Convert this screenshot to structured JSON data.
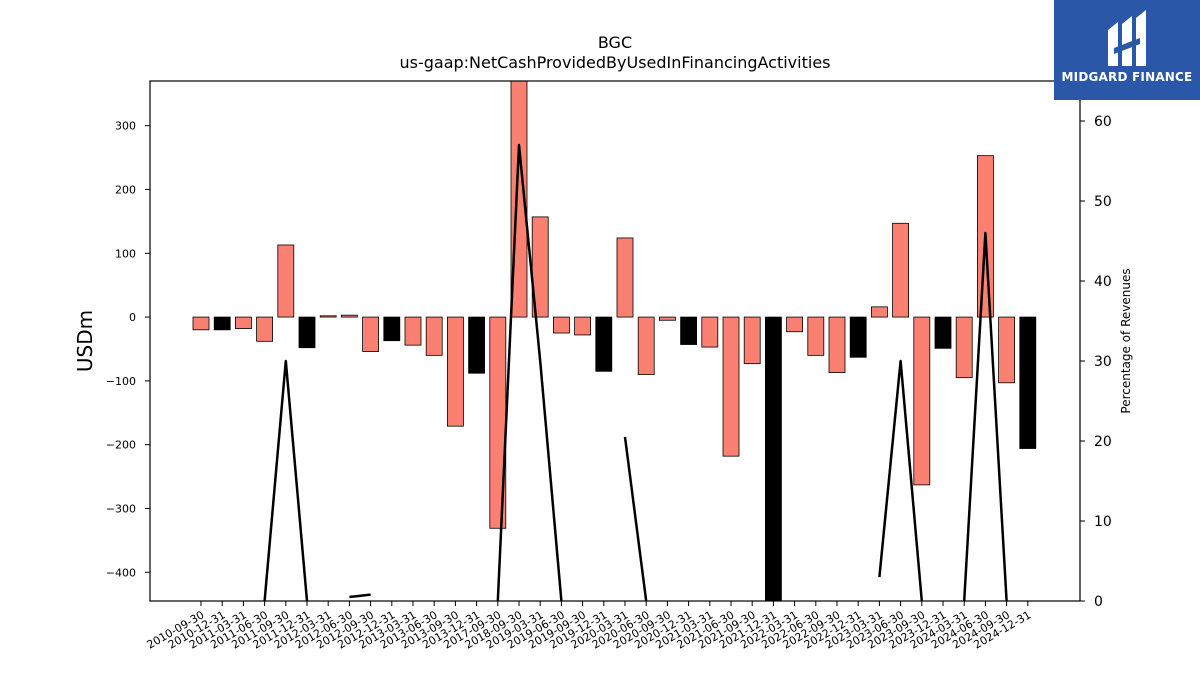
{
  "logo": {
    "text": "MIDGARD FINANCE",
    "color": "#2b57a8"
  },
  "chart_data": {
    "type": "bar",
    "title": "BGC",
    "subtitle": "us-gaap:NetCashProvidedByUsedInFinancingActivities",
    "ylabel": "USDm",
    "y2label": "Percentage of Revenues",
    "ylim": [
      -445,
      370
    ],
    "y2lim": [
      0,
      65
    ],
    "yticks": [
      300,
      200,
      100,
      0,
      -100,
      -200,
      -300,
      -400
    ],
    "y2ticks": [
      0,
      10,
      20,
      30,
      40,
      50,
      60
    ],
    "colors": {
      "positive_bar": "#fa8072",
      "negative_bar": "#000000",
      "line": "#000000"
    },
    "categories": [
      "2010-09-30",
      "2010-12-31",
      "2011-03-31",
      "2011-06-30",
      "2011-09-30",
      "2011-12-31",
      "2012-03-31",
      "2012-06-30",
      "2012-09-30",
      "2012-12-31",
      "2013-03-31",
      "2013-06-30",
      "2013-09-30",
      "2013-12-31",
      "2017-09-30",
      "2018-09-30",
      "2019-03-31",
      "2019-06-30",
      "2019-09-30",
      "2019-12-31",
      "2020-03-31",
      "2020-06-30",
      "2020-09-30",
      "2020-12-31",
      "2021-03-31",
      "2021-06-30",
      "2021-09-30",
      "2021-12-31",
      "2022-03-31",
      "2022-06-30",
      "2022-09-30",
      "2022-12-31",
      "2023-03-31",
      "2023-06-30",
      "2023-09-30",
      "2023-12-31",
      "2024-03-31",
      "2024-06-30",
      "2024-09-30",
      "2024-12-31"
    ],
    "series": [
      {
        "values": [
          -20,
          -20,
          -18,
          -38,
          113,
          -48,
          2,
          3,
          -54,
          -37,
          -44,
          -60,
          -171,
          -88,
          -331,
          400,
          157,
          -25,
          -28,
          -85,
          124,
          -90,
          -5,
          -43,
          -47,
          -218,
          -73,
          -460,
          -23,
          -60,
          -87,
          -63,
          16,
          147,
          -263,
          -49,
          -95,
          253,
          -103,
          -206
        ]
      }
    ],
    "bar_colors": [
      "positive_bar",
      "negative_bar",
      "positive_bar",
      "positive_bar",
      "positive_bar",
      "negative_bar",
      "positive_bar",
      "positive_bar",
      "positive_bar",
      "negative_bar",
      "positive_bar",
      "positive_bar",
      "positive_bar",
      "negative_bar",
      "positive_bar",
      "positive_bar",
      "positive_bar",
      "positive_bar",
      "positive_bar",
      "negative_bar",
      "positive_bar",
      "positive_bar",
      "positive_bar",
      "negative_bar",
      "positive_bar",
      "positive_bar",
      "positive_bar",
      "negative_bar",
      "positive_bar",
      "positive_bar",
      "positive_bar",
      "negative_bar",
      "positive_bar",
      "positive_bar",
      "positive_bar",
      "negative_bar",
      "positive_bar",
      "positive_bar",
      "positive_bar",
      "negative_bar"
    ],
    "line_pct": [
      null,
      null,
      null,
      0,
      30,
      0,
      null,
      0.5,
      0.8,
      null,
      null,
      null,
      null,
      null,
      0,
      57,
      30,
      0,
      null,
      null,
      20.5,
      0,
      null,
      null,
      null,
      null,
      null,
      null,
      null,
      null,
      null,
      null,
      3,
      30,
      0,
      null,
      0,
      46,
      0,
      null
    ]
  }
}
